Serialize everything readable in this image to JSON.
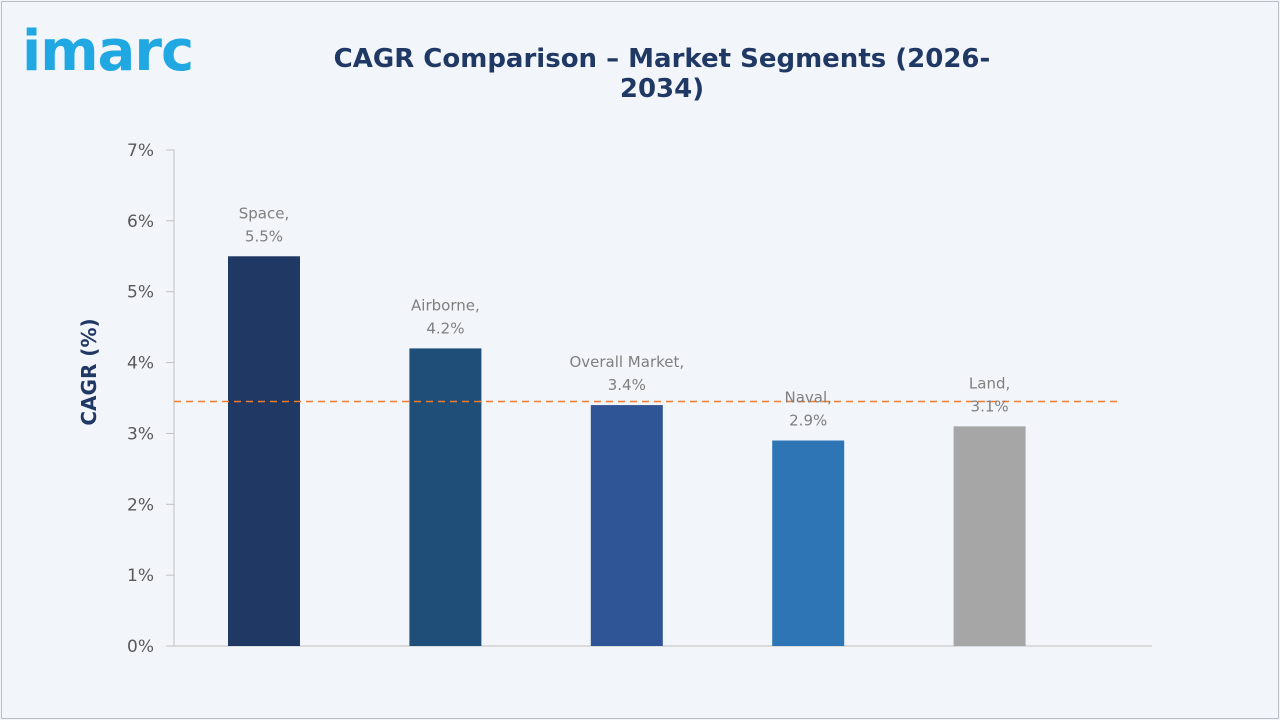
{
  "brand": {
    "logo_text": "imarc",
    "logo_color": "#1fa8e1"
  },
  "header": {
    "title": "CAGR Comparison – Market Segments (2026-2034)",
    "title_color": "#1f3864"
  },
  "chart_data": {
    "type": "bar",
    "title": "CAGR Comparison – Market Segments (2026-2034)",
    "xlabel": "",
    "ylabel": "CAGR (%)",
    "ylim": [
      0,
      7
    ],
    "yticks": [
      0,
      1,
      2,
      3,
      4,
      5,
      6,
      7
    ],
    "ytick_labels": [
      "0%",
      "1%",
      "2%",
      "3%",
      "4%",
      "5%",
      "6%",
      "7%"
    ],
    "categories": [
      "Space",
      "Airborne",
      "Overall Market",
      "Naval",
      "Land"
    ],
    "values": [
      5.5,
      4.2,
      3.4,
      2.9,
      3.1
    ],
    "data_labels": [
      [
        "Space,",
        "5.5%"
      ],
      [
        "Airborne,",
        "4.2%"
      ],
      [
        "Overall Market,",
        "3.4%"
      ],
      [
        "Naval,",
        "2.9%"
      ],
      [
        "Land,",
        "3.1%"
      ]
    ],
    "colors": [
      "#1f3864",
      "#1f4e79",
      "#2f5597",
      "#2e75b6",
      "#a6a6a6"
    ],
    "reference_line": {
      "value": 3.45,
      "style": "dashed",
      "color": "#ed7d31"
    },
    "grid": false,
    "legend": "none"
  }
}
